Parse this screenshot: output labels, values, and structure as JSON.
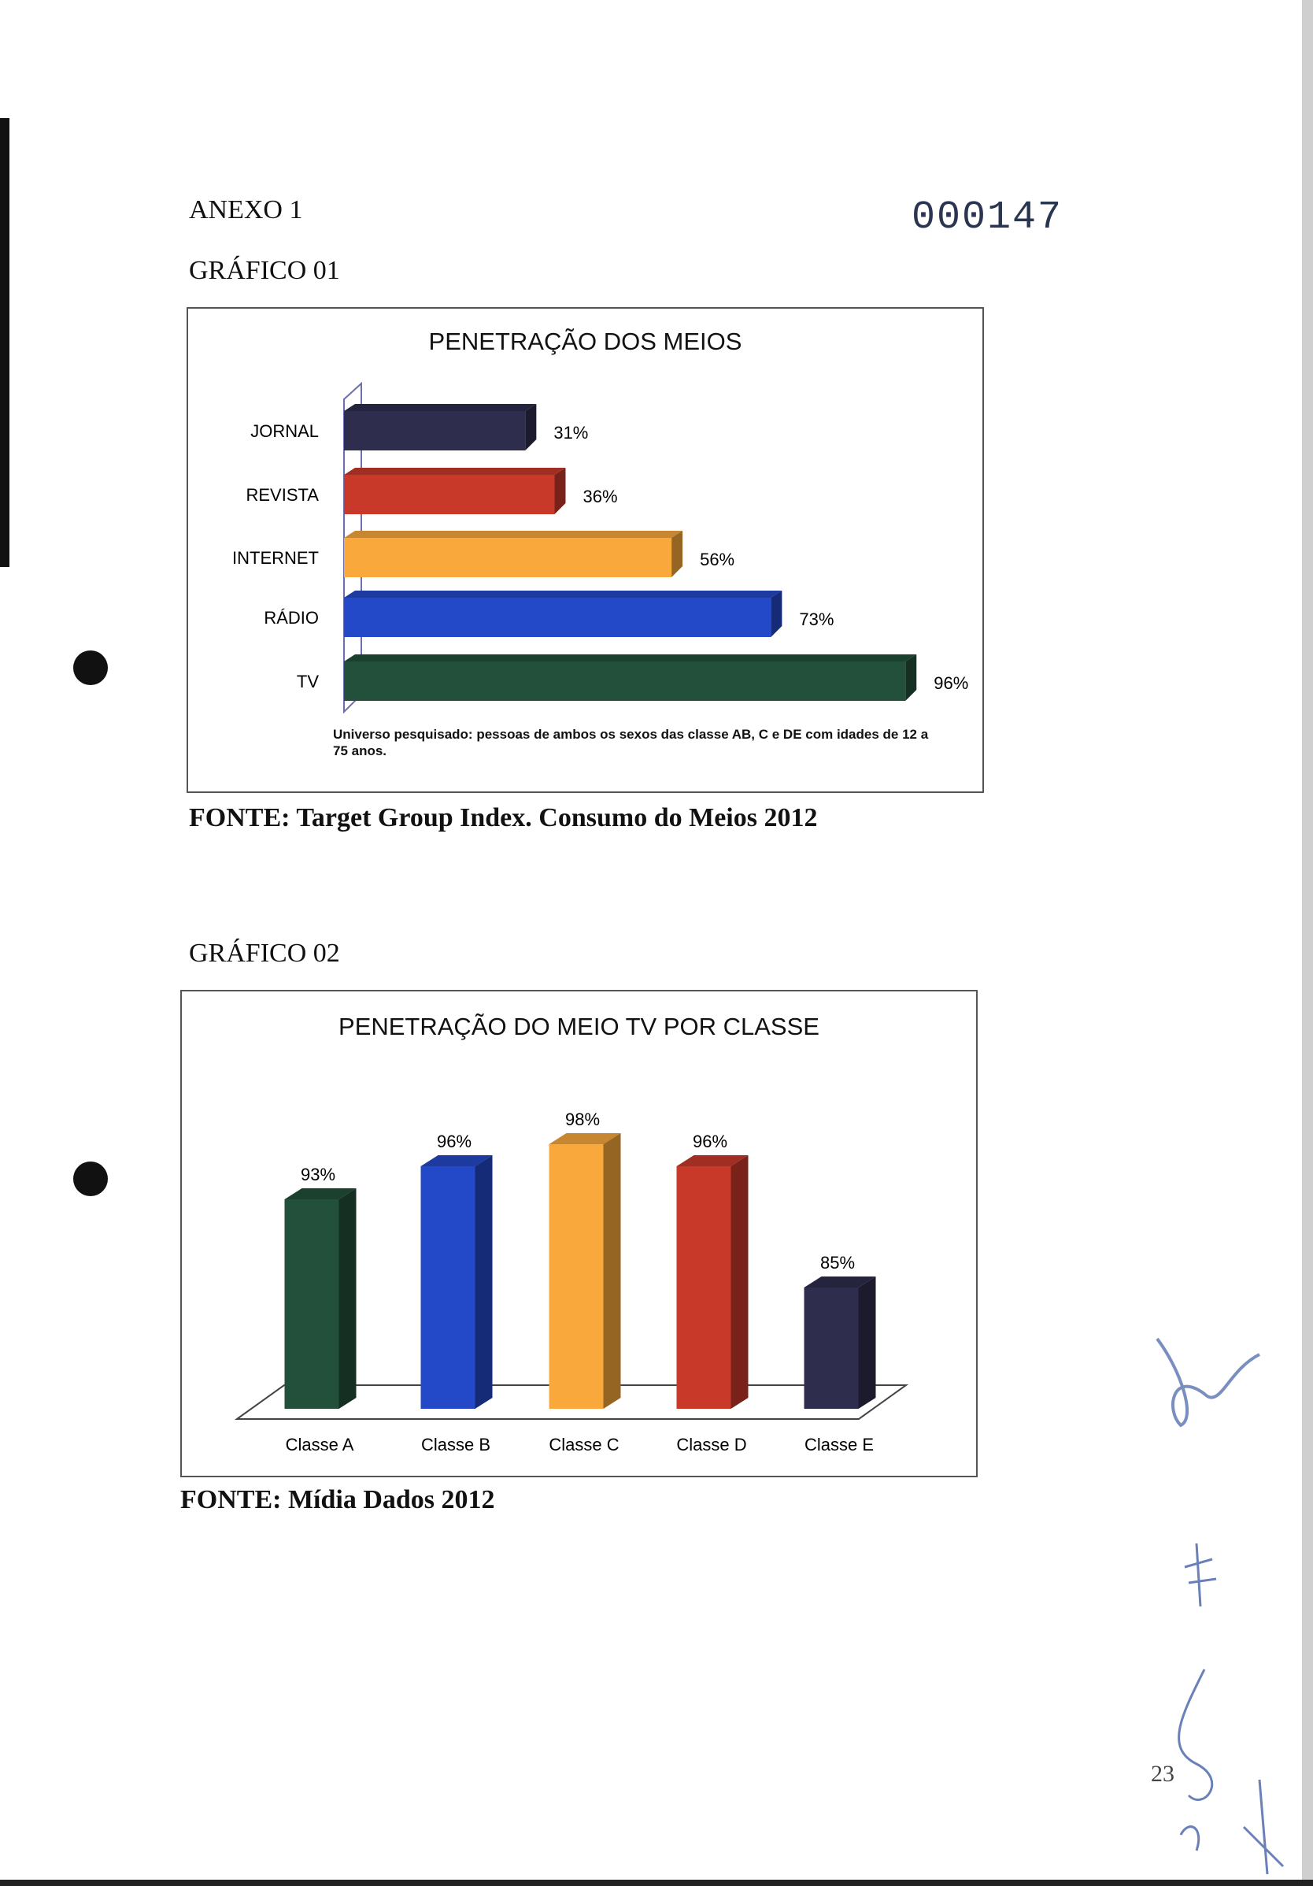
{
  "page": {
    "annex": "ANEXO 1",
    "stamp_number": "000147",
    "page_number": "23"
  },
  "chart1_section": {
    "heading": "GRÁFICO 01",
    "source": "FONTE: Target Group Index. Consumo do Meios 2012",
    "note": "Universo pesquisado: pessoas de ambos os sexos das classe AB, C e DE com idades de 12 a 75 anos."
  },
  "chart2_section": {
    "heading": "GRÁFICO 02",
    "source": "FONTE: Mídia Dados 2012"
  },
  "chart_data": [
    {
      "type": "bar",
      "orientation": "horizontal",
      "style": "3d",
      "title": "PENETRAÇÃO DOS MEIOS",
      "categories": [
        "JORNAL",
        "REVISTA",
        "INTERNET",
        "RÁDIO",
        "TV"
      ],
      "values": [
        31,
        36,
        56,
        73,
        96
      ],
      "data_labels": [
        "31%",
        "36%",
        "56%",
        "73%",
        "96%"
      ],
      "colors": [
        "#2e2d4d",
        "#c8392a",
        "#f9a93c",
        "#2348c8",
        "#23503a"
      ],
      "xlim": [
        0,
        100
      ],
      "grid": false
    },
    {
      "type": "bar",
      "orientation": "vertical",
      "style": "3d",
      "title": "PENETRAÇÃO DO MEIO TV POR CLASSE",
      "categories": [
        "Classe A",
        "Classe B",
        "Classe C",
        "Classe D",
        "Classe E"
      ],
      "values": [
        93,
        96,
        98,
        96,
        85
      ],
      "data_labels": [
        "93%",
        "96%",
        "98%",
        "96%",
        "85%"
      ],
      "colors": [
        "#23503a",
        "#2348c8",
        "#f9a93c",
        "#c8392a",
        "#2e2d4d"
      ],
      "ylim": [
        74,
        100
      ],
      "grid": false
    }
  ]
}
